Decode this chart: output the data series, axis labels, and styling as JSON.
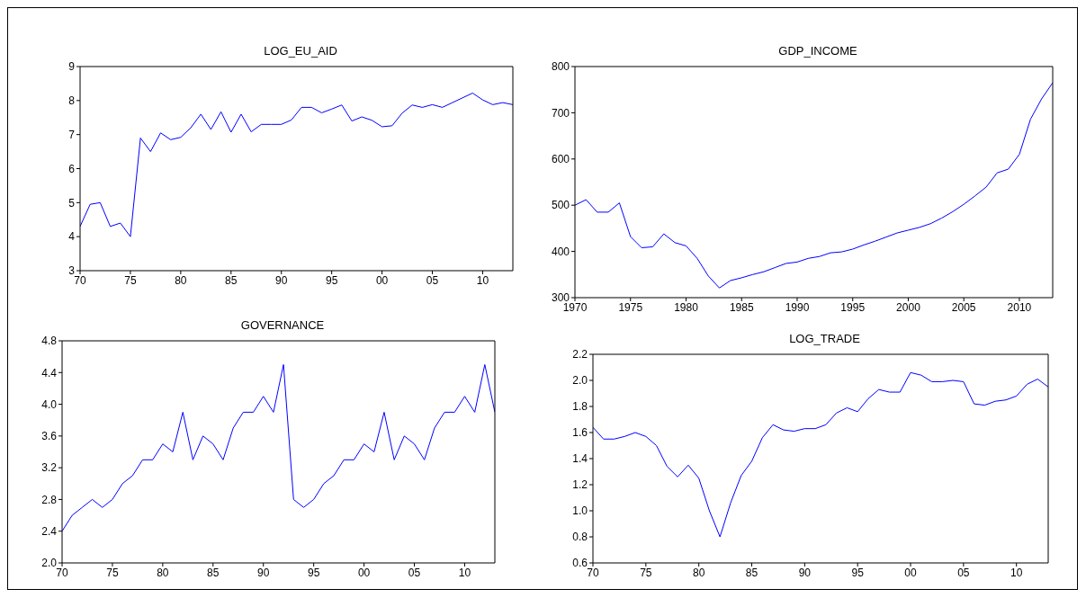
{
  "chart_data": [
    {
      "type": "line",
      "title": "LOG_EU_AID",
      "x": [
        1970,
        1971,
        1972,
        1973,
        1974,
        1975,
        1976,
        1977,
        1978,
        1979,
        1980,
        1981,
        1982,
        1983,
        1984,
        1985,
        1986,
        1987,
        1988,
        1989,
        1990,
        1991,
        1992,
        1993,
        1994,
        1995,
        1996,
        1997,
        1998,
        1999,
        2000,
        2001,
        2002,
        2003,
        2004,
        2005,
        2006,
        2007,
        2008,
        2009,
        2010,
        2011,
        2012,
        2013
      ],
      "series": [
        {
          "color": "#0000ff",
          "values": [
            4.3,
            4.95,
            5.0,
            4.3,
            4.4,
            4.0,
            6.9,
            6.5,
            7.05,
            6.85,
            6.92,
            7.2,
            7.6,
            7.15,
            7.67,
            7.07,
            7.6,
            7.08,
            7.3,
            7.3,
            7.3,
            7.43,
            7.8,
            7.8,
            7.64,
            7.75,
            7.87,
            7.4,
            7.52,
            7.42,
            7.23,
            7.26,
            7.63,
            7.87,
            7.8,
            7.88,
            7.8,
            7.94,
            8.08,
            8.22,
            8.02,
            7.88,
            7.94,
            7.88
          ]
        }
      ],
      "xlim": [
        1970,
        2013
      ],
      "xticks": [
        {
          "value": 1970,
          "label": "70"
        },
        {
          "value": 1975,
          "label": "75"
        },
        {
          "value": 1980,
          "label": "80"
        },
        {
          "value": 1985,
          "label": "85"
        },
        {
          "value": 1990,
          "label": "90"
        },
        {
          "value": 1995,
          "label": "95"
        },
        {
          "value": 2000,
          "label": "00"
        },
        {
          "value": 2005,
          "label": "05"
        },
        {
          "value": 2010,
          "label": "10"
        }
      ],
      "ylim": [
        3,
        9
      ],
      "yticks": [
        3,
        4,
        5,
        6,
        7,
        8,
        9
      ],
      "grid": false,
      "legend": false
    },
    {
      "type": "line",
      "title": "GDP_INCOME",
      "x": [
        1970,
        1971,
        1972,
        1973,
        1974,
        1975,
        1976,
        1977,
        1978,
        1979,
        1980,
        1981,
        1982,
        1983,
        1984,
        1985,
        1986,
        1987,
        1988,
        1989,
        1990,
        1991,
        1992,
        1993,
        1994,
        1995,
        1996,
        1997,
        1998,
        1999,
        2000,
        2001,
        2002,
        2003,
        2004,
        2005,
        2006,
        2007,
        2008,
        2009,
        2010,
        2011,
        2012,
        2013
      ],
      "series": [
        {
          "color": "#0000ff",
          "values": [
            500,
            512,
            485,
            485,
            505,
            432,
            408,
            410,
            438,
            419,
            412,
            385,
            347,
            321,
            337,
            343,
            350,
            356,
            365,
            374,
            377,
            385,
            389,
            397,
            399,
            405,
            414,
            422,
            431,
            440,
            446,
            452,
            460,
            472,
            486,
            502,
            520,
            539,
            570,
            578,
            610,
            686,
            730,
            765
          ]
        }
      ],
      "xlim": [
        1970,
        2013
      ],
      "xticks": [
        1970,
        1975,
        1980,
        1985,
        1990,
        1995,
        2000,
        2005,
        2010
      ],
      "ylim": [
        300,
        800
      ],
      "yticks": [
        300,
        400,
        500,
        600,
        700,
        800
      ],
      "grid": false,
      "legend": false
    },
    {
      "type": "line",
      "title": "GOVERNANCE",
      "x": [
        1970,
        1971,
        1972,
        1973,
        1974,
        1975,
        1976,
        1977,
        1978,
        1979,
        1980,
        1981,
        1982,
        1983,
        1984,
        1985,
        1986,
        1987,
        1988,
        1989,
        1990,
        1991,
        1992,
        1993,
        1994,
        1995,
        1996,
        1997,
        1998,
        1999,
        2000,
        2001,
        2002,
        2003,
        2004,
        2005,
        2006,
        2007,
        2008,
        2009,
        2010,
        2011,
        2012,
        2013
      ],
      "series": [
        {
          "color": "#0000ff",
          "values": [
            2.4,
            2.6,
            2.7,
            2.8,
            2.7,
            2.8,
            3.0,
            3.1,
            3.3,
            3.3,
            3.5,
            3.4,
            3.9,
            3.3,
            3.6,
            3.5,
            3.3,
            3.7,
            3.9,
            3.9,
            4.1,
            3.9,
            4.5,
            2.8,
            2.7,
            2.8,
            3.0,
            3.1,
            3.3,
            3.3,
            3.5,
            3.4,
            3.9,
            3.3,
            3.6,
            3.5,
            3.3,
            3.7,
            3.9,
            3.9,
            4.1,
            3.9,
            4.5,
            3.9
          ]
        }
      ],
      "xlim": [
        1970,
        2013
      ],
      "xticks": [
        {
          "value": 1970,
          "label": "70"
        },
        {
          "value": 1975,
          "label": "75"
        },
        {
          "value": 1980,
          "label": "80"
        },
        {
          "value": 1985,
          "label": "85"
        },
        {
          "value": 1990,
          "label": "90"
        },
        {
          "value": 1995,
          "label": "95"
        },
        {
          "value": 2000,
          "label": "00"
        },
        {
          "value": 2005,
          "label": "05"
        },
        {
          "value": 2010,
          "label": "10"
        }
      ],
      "ylim": [
        2,
        4.8
      ],
      "yticks": [
        {
          "value": 2,
          "label": "2.0"
        },
        2.4,
        2.8,
        3.2,
        3.6,
        {
          "value": 4,
          "label": "4.0"
        },
        4.4,
        4.8
      ],
      "grid": false,
      "legend": false
    },
    {
      "type": "line",
      "title": "LOG_TRADE",
      "x": [
        1970,
        1971,
        1972,
        1973,
        1974,
        1975,
        1976,
        1977,
        1978,
        1979,
        1980,
        1981,
        1982,
        1983,
        1984,
        1985,
        1986,
        1987,
        1988,
        1989,
        1990,
        1991,
        1992,
        1993,
        1994,
        1995,
        1996,
        1997,
        1998,
        1999,
        2000,
        2001,
        2002,
        2003,
        2004,
        2005,
        2006,
        2007,
        2008,
        2009,
        2010,
        2011,
        2012,
        2013
      ],
      "series": [
        {
          "color": "#0000ff",
          "values": [
            1.64,
            1.55,
            1.55,
            1.57,
            1.6,
            1.57,
            1.5,
            1.34,
            1.26,
            1.35,
            1.25,
            1.0,
            0.8,
            1.06,
            1.27,
            1.38,
            1.56,
            1.66,
            1.62,
            1.61,
            1.63,
            1.63,
            1.66,
            1.75,
            1.79,
            1.76,
            1.86,
            1.93,
            1.91,
            1.91,
            2.06,
            2.04,
            1.99,
            1.99,
            2.0,
            1.99,
            1.82,
            1.81,
            1.84,
            1.85,
            1.88,
            1.97,
            2.01,
            1.95
          ]
        }
      ],
      "xlim": [
        1970,
        2013
      ],
      "xticks": [
        {
          "value": 1970,
          "label": "70"
        },
        {
          "value": 1975,
          "label": "75"
        },
        {
          "value": 1980,
          "label": "80"
        },
        {
          "value": 1985,
          "label": "85"
        },
        {
          "value": 1990,
          "label": "90"
        },
        {
          "value": 1995,
          "label": "95"
        },
        {
          "value": 2000,
          "label": "00"
        },
        {
          "value": 2005,
          "label": "05"
        },
        {
          "value": 2010,
          "label": "10"
        }
      ],
      "ylim": [
        0.6,
        2.2
      ],
      "yticks": [
        0.6,
        0.8,
        {
          "value": 1,
          "label": "1.0"
        },
        1.2,
        1.4,
        1.6,
        1.8,
        {
          "value": 2,
          "label": "2.0"
        },
        2.2
      ],
      "grid": false,
      "legend": false
    }
  ]
}
